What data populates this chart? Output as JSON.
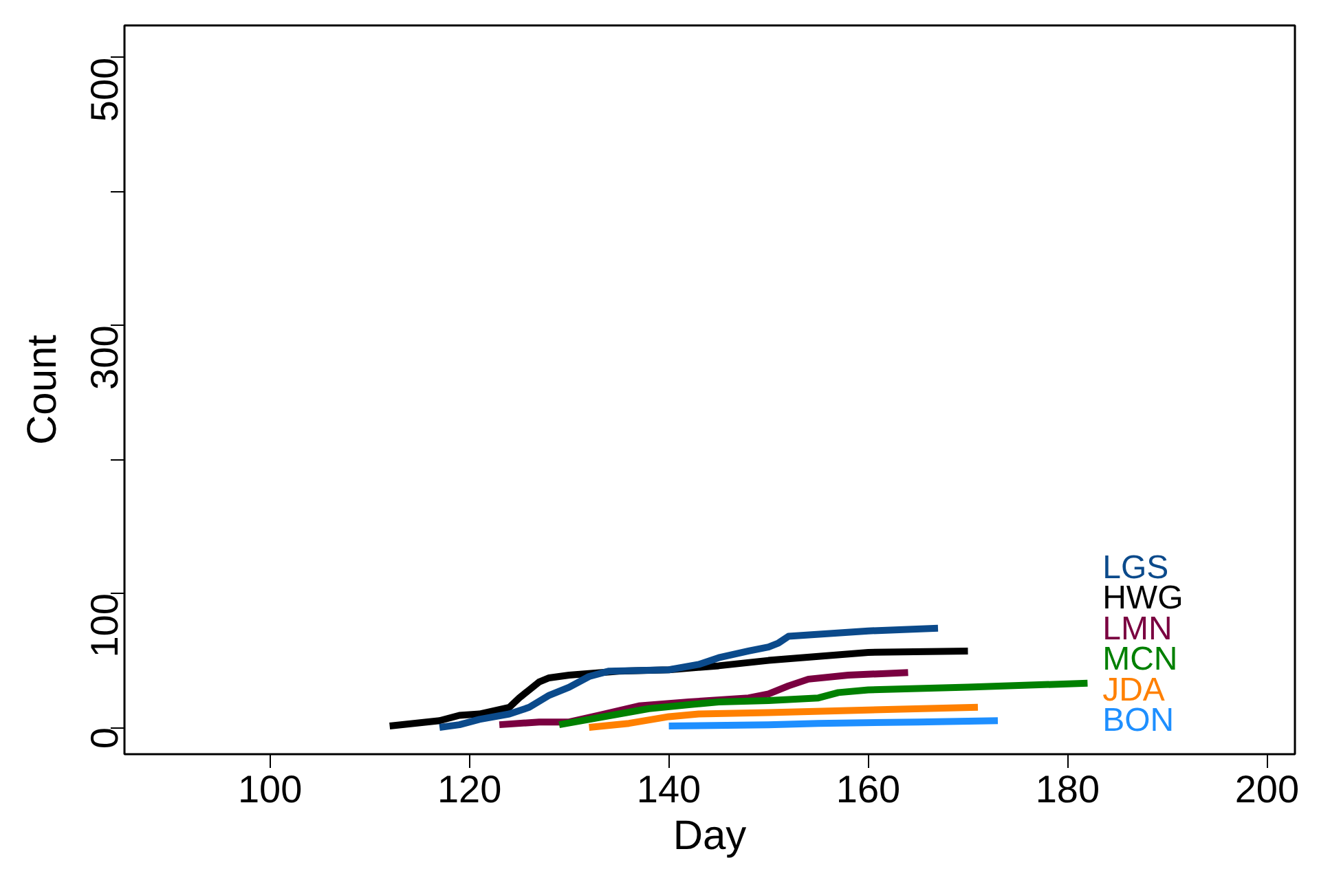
{
  "chart_data": {
    "type": "line",
    "xlabel": "Day",
    "ylabel": "Count",
    "xlim": [
      85.4,
      202.8
    ],
    "ylim": [
      -20,
      524
    ],
    "xticks": [
      100,
      120,
      140,
      160,
      180,
      200
    ],
    "yticks": [
      0,
      100,
      {
        "value": 200,
        "label": null
      },
      300,
      {
        "value": 400,
        "label": null
      },
      500
    ],
    "grid": false,
    "line_style": "solid",
    "marker": "none",
    "series": [
      {
        "name": "HWG",
        "color": "#000000",
        "x": [
          112,
          117,
          119,
          121,
          124,
          125,
          127,
          128,
          130,
          135,
          140,
          145,
          150,
          155,
          160,
          170
        ],
        "values": [
          1,
          5,
          9,
          10,
          15,
          22,
          34,
          37,
          39,
          42,
          43,
          46,
          50,
          53,
          56,
          57
        ]
      },
      {
        "name": "LGS",
        "color": "#0b4a8b",
        "x": [
          117,
          119,
          121,
          124,
          126,
          128,
          130,
          132,
          134,
          140,
          143,
          145,
          148,
          150,
          151,
          152,
          160,
          167
        ],
        "values": [
          0,
          2,
          6,
          10,
          15,
          24,
          30,
          38,
          42,
          43,
          47,
          52,
          57,
          60,
          63,
          68,
          72,
          74
        ]
      },
      {
        "name": "LMN",
        "color": "#7a0040",
        "x": [
          123,
          127,
          130,
          133,
          137,
          142,
          148,
          150,
          152,
          154,
          158,
          164
        ],
        "values": [
          2,
          4,
          4,
          9,
          16,
          19,
          22,
          25,
          31,
          36,
          39,
          41
        ]
      },
      {
        "name": "MCN",
        "color": "#008000",
        "x": [
          129,
          132,
          135,
          138,
          142,
          145,
          150,
          155,
          157,
          160,
          170,
          182
        ],
        "values": [
          2,
          6,
          10,
          14,
          17,
          19,
          20,
          22,
          26,
          28,
          30,
          33
        ]
      },
      {
        "name": "JDA",
        "color": "#ff8000",
        "x": [
          132,
          136,
          140,
          143,
          150,
          160,
          171
        ],
        "values": [
          0,
          3,
          8,
          10,
          11,
          13,
          15
        ]
      },
      {
        "name": "BON",
        "color": "#1e8fff",
        "x": [
          140,
          150,
          155,
          165,
          173
        ],
        "values": [
          1,
          2,
          3,
          4,
          5
        ]
      }
    ]
  }
}
